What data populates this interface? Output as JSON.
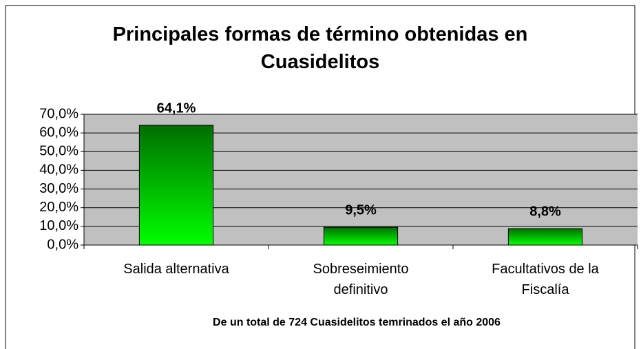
{
  "chart_data": {
    "type": "bar",
    "title": "Principales formas de término obtenidas en Cuasidelitos",
    "note": "De un total de 724 Cuasidelitos temrinados el año 2006",
    "categories": [
      "Salida alternativa",
      "Sobreseimiento definitivo",
      "Facultativos de la Fiscalía"
    ],
    "values": [
      64.1,
      9.5,
      8.8
    ],
    "value_labels": [
      "64,1%",
      "9,5%",
      "8,8%"
    ],
    "color": "#00ff00",
    "ylim": [
      0,
      70
    ],
    "yticks": [
      {
        "value": 0,
        "label": "0,0%"
      },
      {
        "value": 10,
        "label": "10,0%"
      },
      {
        "value": 20,
        "label": "20,0%"
      },
      {
        "value": 30,
        "label": "30,0%"
      },
      {
        "value": 40,
        "label": "40,0%"
      },
      {
        "value": 50,
        "label": "50,0%"
      },
      {
        "value": 60,
        "label": "60,0%"
      },
      {
        "value": 70,
        "label": "70,0%"
      }
    ],
    "grid": true
  }
}
